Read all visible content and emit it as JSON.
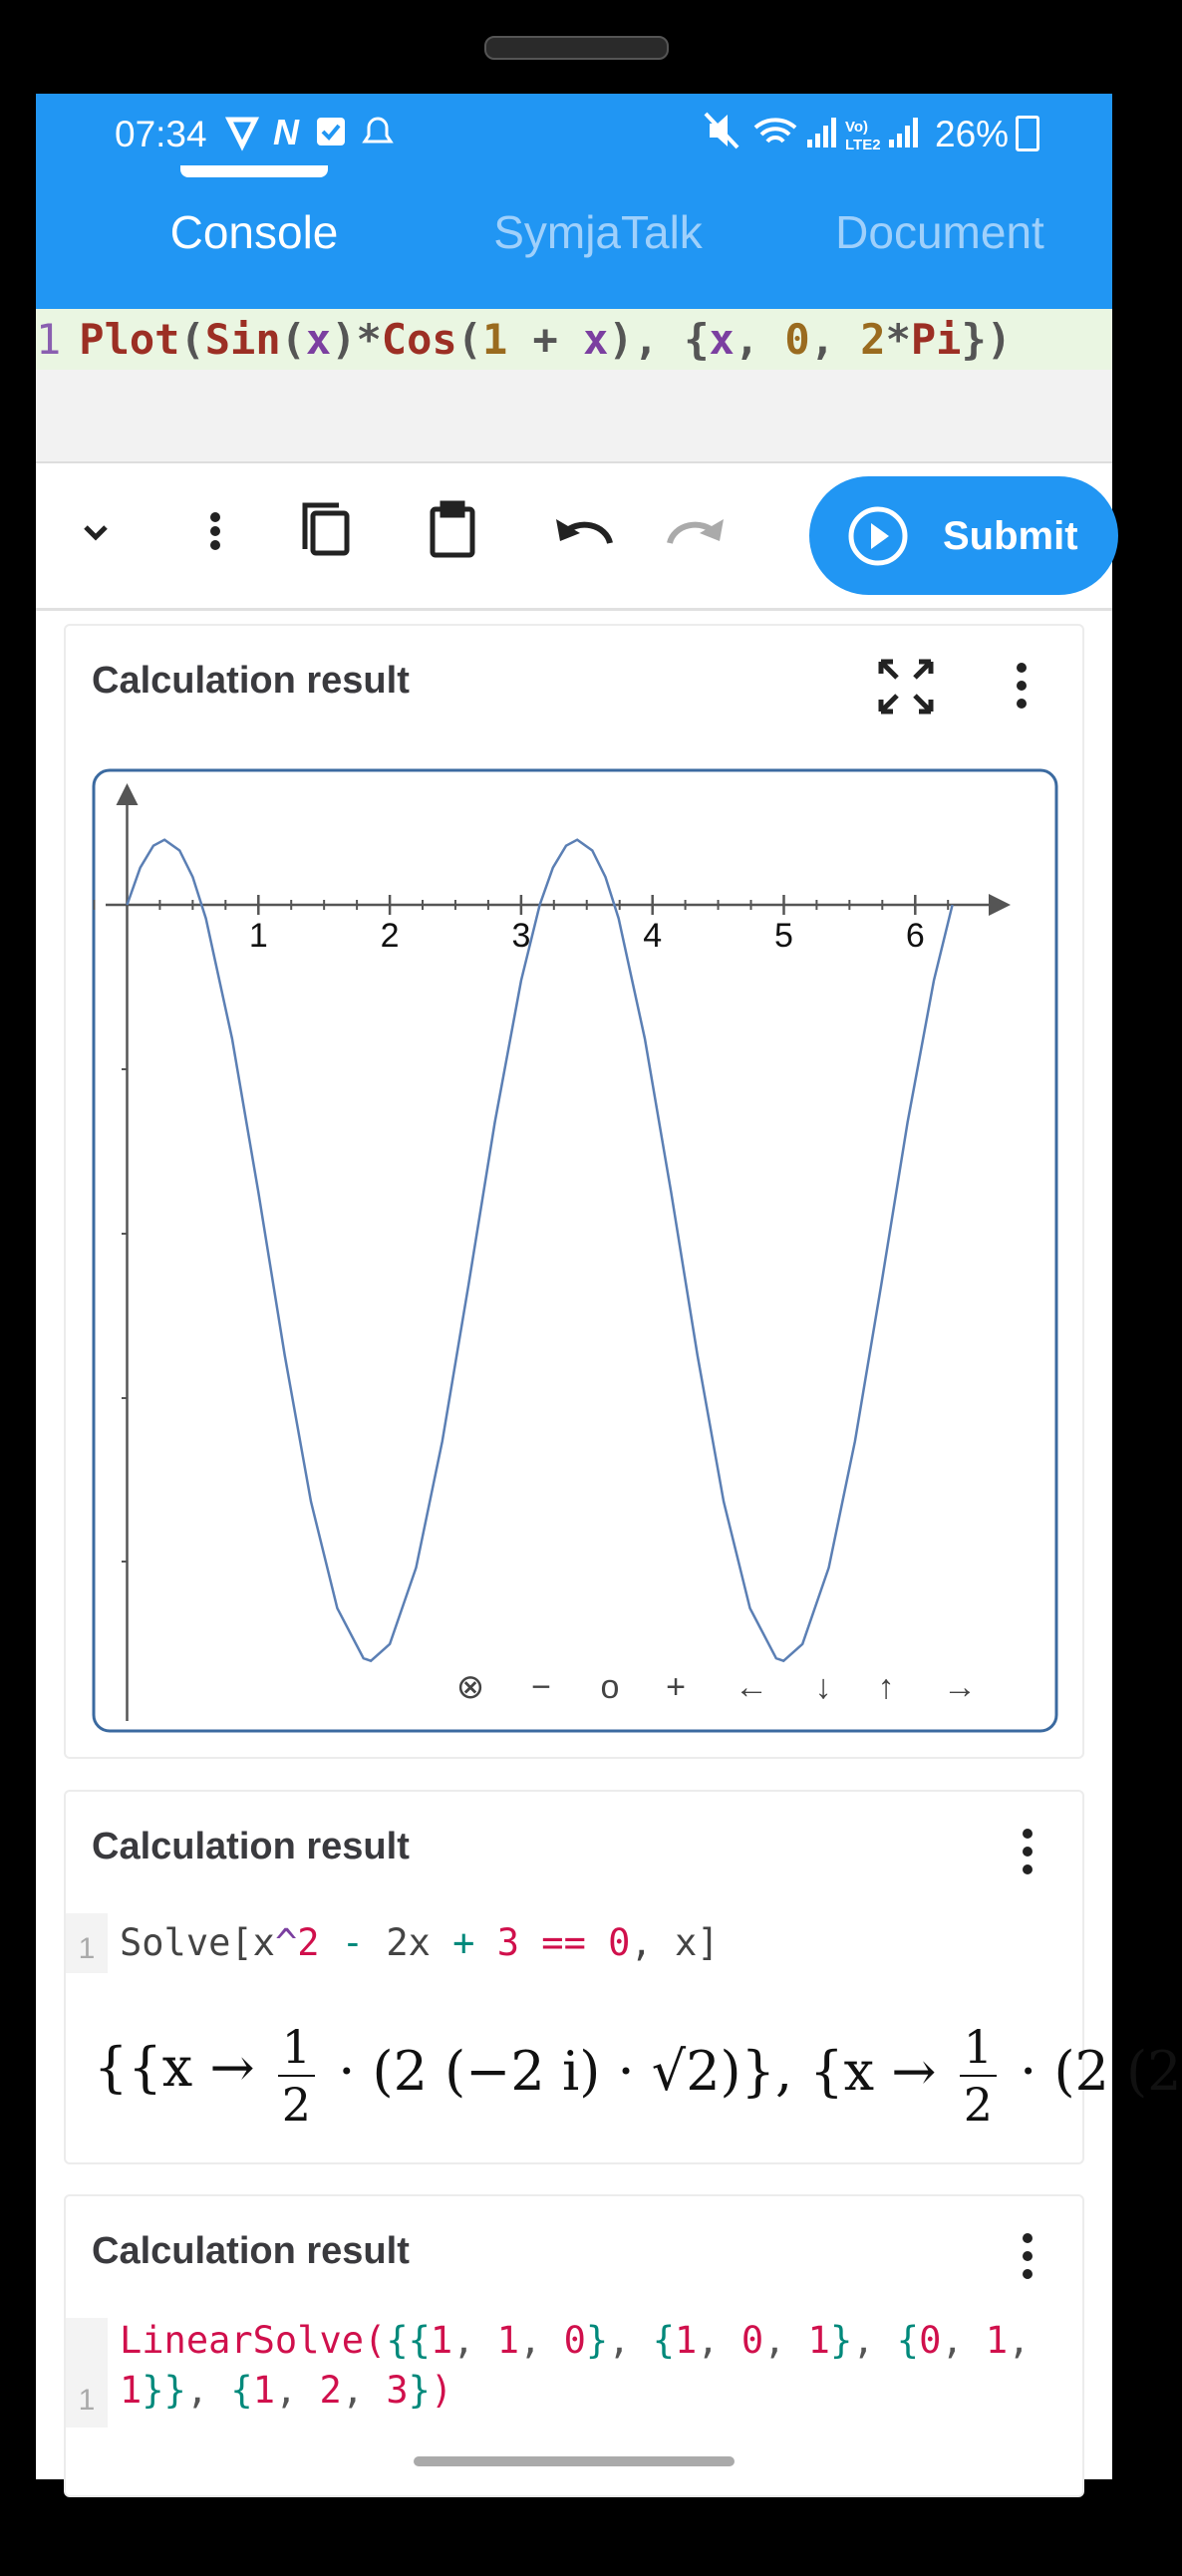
{
  "status_bar": {
    "time": "07:34",
    "battery": "26%"
  },
  "tabs": [
    "Console",
    "SymjaTalk",
    "Document"
  ],
  "editor": {
    "line_number": "1",
    "tokens": [
      [
        "Plot",
        "#9c2f24"
      ],
      [
        "(",
        "#555"
      ],
      [
        "Sin",
        "#9c2f24"
      ],
      [
        "(",
        "#555"
      ],
      [
        "x",
        "#7b3fa0"
      ],
      [
        ")*",
        "#555"
      ],
      [
        "Cos",
        "#9c2f24"
      ],
      [
        "(",
        "#555"
      ],
      [
        "1",
        "#9a6b1f"
      ],
      [
        " + ",
        "#555"
      ],
      [
        "x",
        "#7b3fa0"
      ],
      [
        "), {",
        "#555"
      ],
      [
        "x",
        "#7b3fa0"
      ],
      [
        ", ",
        "#555"
      ],
      [
        "0",
        "#9a6b1f"
      ],
      [
        ", ",
        "#555"
      ],
      [
        "2",
        "#9a6b1f"
      ],
      [
        "*",
        "#555"
      ],
      [
        "Pi",
        "#9c2f24"
      ],
      [
        "})",
        "#555"
      ]
    ]
  },
  "toolbar": {
    "submit": "Submit"
  },
  "cards": [
    {
      "title": "Calculation result",
      "plot": {
        "xticks": [
          1,
          2,
          3,
          4,
          5,
          6
        ],
        "controls": [
          "⊗",
          "−",
          "o",
          "+",
          "←",
          "↓",
          "↑",
          "→"
        ]
      }
    },
    {
      "title": "Calculation result",
      "line_number": "1",
      "tokens": [
        [
          "Solve[x",
          "#444"
        ],
        [
          "^",
          "#7b3fa0"
        ],
        [
          "2",
          "#d0104c"
        ],
        [
          " ",
          "#444"
        ],
        [
          "-",
          "#00897b"
        ],
        [
          " 2x ",
          "#444"
        ],
        [
          "+",
          "#00897b"
        ],
        [
          " ",
          "#444"
        ],
        [
          "3",
          "#d0104c"
        ],
        [
          " ",
          "#444"
        ],
        [
          "==",
          "#d0104c"
        ],
        [
          " ",
          "#444"
        ],
        [
          "0",
          "#d0104c"
        ],
        [
          ", x]",
          "#444"
        ]
      ],
      "result": {
        "open": "{{x → ",
        "num": "1",
        "den": "2",
        "middle": " · (2 (−2 i) · √2)}, {x → ",
        "num2": "1",
        "den2": "2",
        "tail": " · (2 (2"
      }
    },
    {
      "title": "Calculation result",
      "line_number": "1",
      "lines": [
        [
          [
            "LinearSolve(",
            "#d0104c"
          ],
          [
            "{{",
            "#00897b"
          ],
          [
            "1",
            "#d0104c"
          ],
          [
            ", ",
            "#555"
          ],
          [
            "1",
            "#d0104c"
          ],
          [
            ", ",
            "#555"
          ],
          [
            "0",
            "#d0104c"
          ],
          [
            "}",
            "#00897b"
          ],
          [
            ", ",
            "#555"
          ],
          [
            "{",
            "#00897b"
          ],
          [
            "1",
            "#d0104c"
          ],
          [
            ", ",
            "#555"
          ],
          [
            "0",
            "#d0104c"
          ],
          [
            ", ",
            "#555"
          ],
          [
            "1",
            "#d0104c"
          ],
          [
            "}",
            "#00897b"
          ],
          [
            ", ",
            "#555"
          ],
          [
            "{",
            "#00897b"
          ],
          [
            "0",
            "#d0104c"
          ],
          [
            ", ",
            "#555"
          ],
          [
            "1",
            "#d0104c"
          ],
          [
            ",",
            "#555"
          ]
        ],
        [
          [
            "1",
            "#d0104c"
          ],
          [
            "}}",
            "#00897b"
          ],
          [
            ", ",
            "#555"
          ],
          [
            "{",
            "#00897b"
          ],
          [
            "1",
            "#d0104c"
          ],
          [
            ", ",
            "#555"
          ],
          [
            "2",
            "#d0104c"
          ],
          [
            ", ",
            "#555"
          ],
          [
            "3",
            "#d0104c"
          ],
          [
            "}",
            "#00897b"
          ],
          [
            ")",
            "#d0104c"
          ]
        ]
      ]
    }
  ]
}
